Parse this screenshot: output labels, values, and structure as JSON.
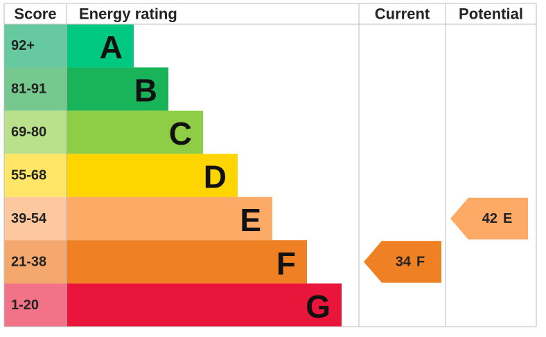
{
  "chart_data": {
    "type": "epc",
    "headers": {
      "score": "Score",
      "rating": "Energy rating",
      "current": "Current",
      "potential": "Potential"
    },
    "bands": [
      {
        "score": "92+",
        "letter": "A",
        "color": "#00c781",
        "score_color": "#66c9a0"
      },
      {
        "score": "81-91",
        "letter": "B",
        "color": "#19b459",
        "score_color": "#75c98e"
      },
      {
        "score": "69-80",
        "letter": "C",
        "color": "#8dce46",
        "score_color": "#b9e08b"
      },
      {
        "score": "55-68",
        "letter": "D",
        "color": "#ffd500",
        "score_color": "#ffe666"
      },
      {
        "score": "39-54",
        "letter": "E",
        "color": "#fcaa65",
        "score_color": "#fdc89e"
      },
      {
        "score": "21-38",
        "letter": "F",
        "color": "#ef8023",
        "score_color": "#f4a86d"
      },
      {
        "score": "1-20",
        "letter": "G",
        "color": "#e9153b",
        "score_color": "#f27288"
      }
    ],
    "current": {
      "value": 34,
      "rating": "F"
    },
    "potential": {
      "value": 42,
      "rating": "E"
    }
  }
}
